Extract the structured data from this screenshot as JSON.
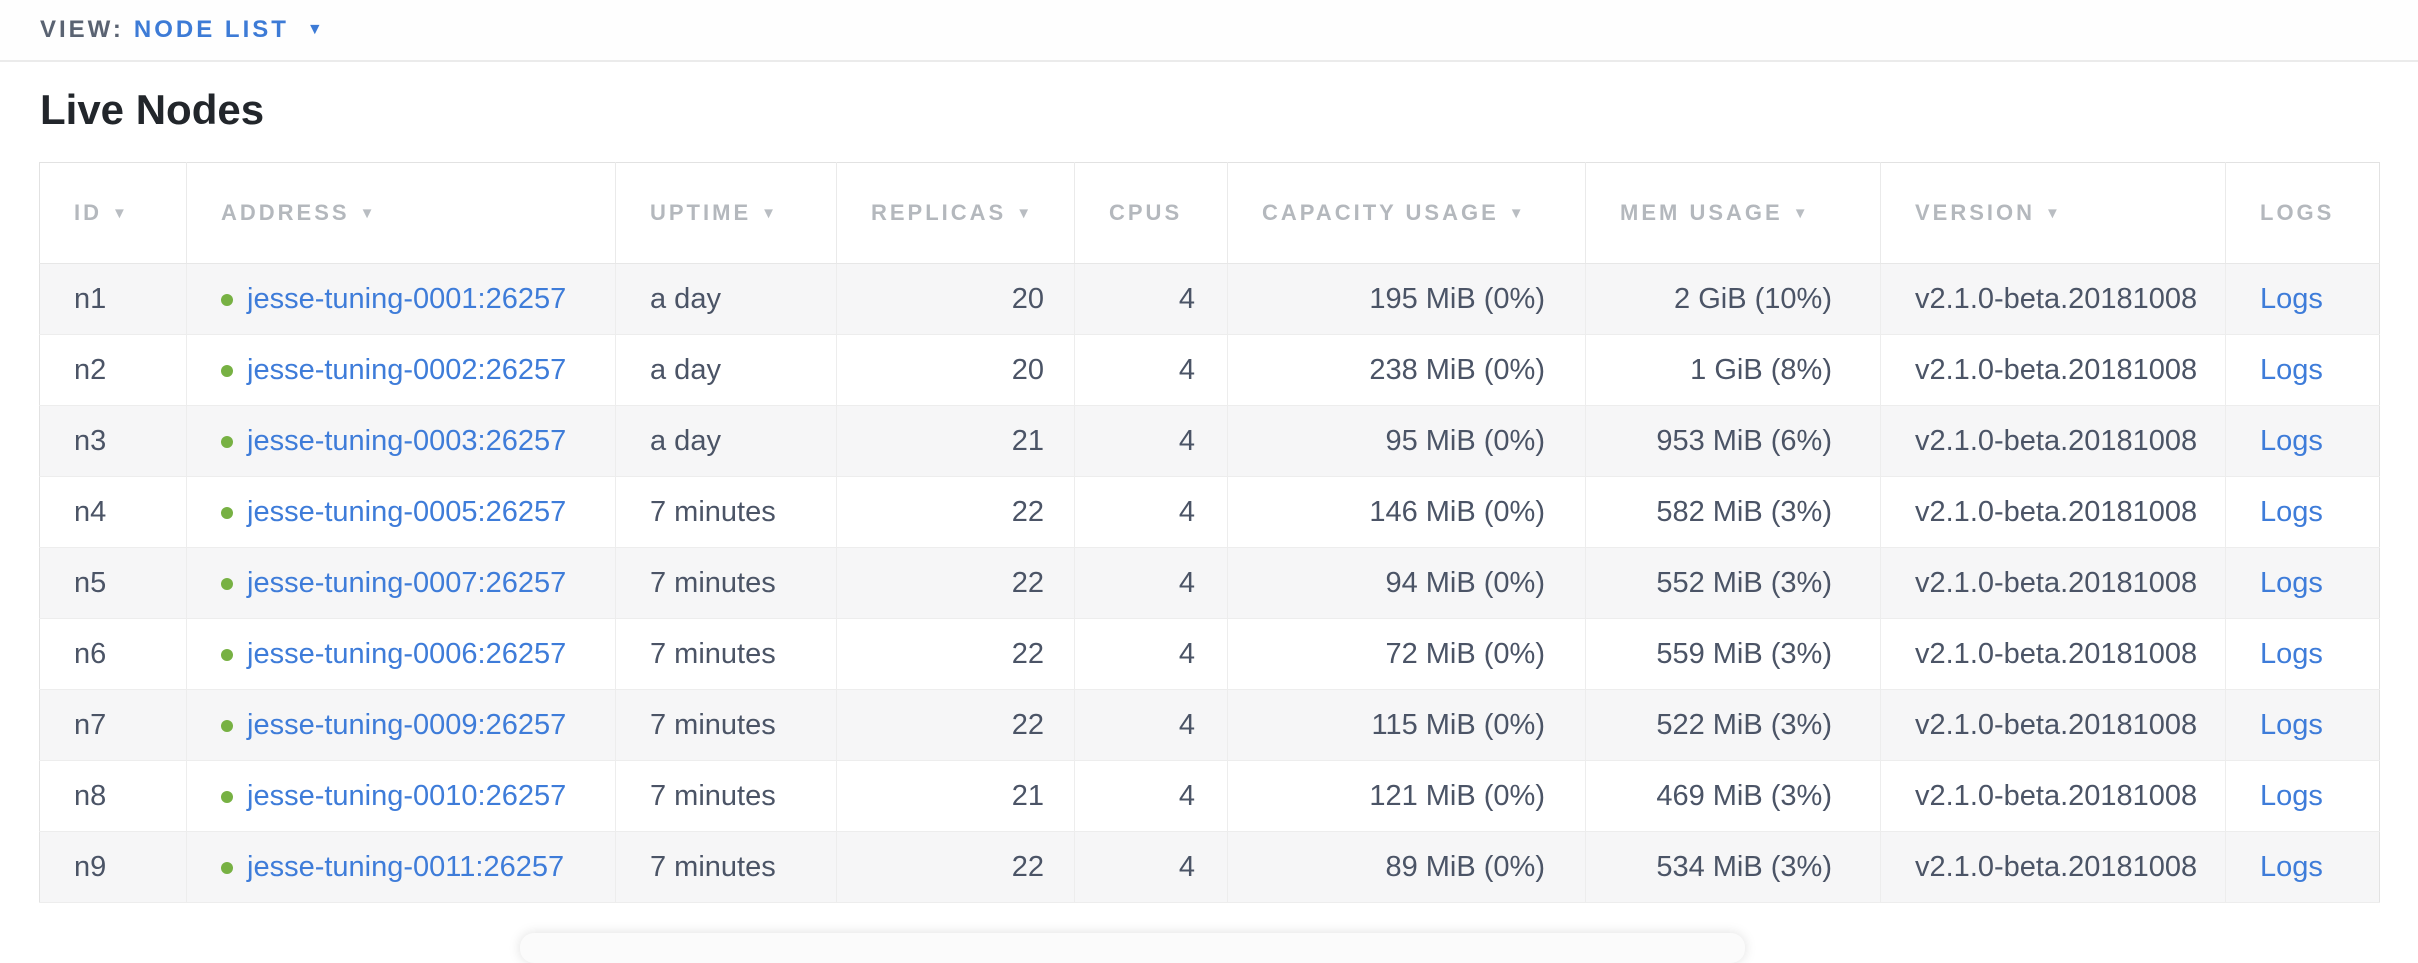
{
  "view_bar": {
    "label": "VIEW:",
    "selected_view": "NODE LIST"
  },
  "page": {
    "title": "Live Nodes"
  },
  "icons": {
    "sort_desc": "▼",
    "dropdown_caret": "▼",
    "live_status_dot": "green-circle"
  },
  "colors": {
    "accent_blue": "#3d7bd6",
    "live_green": "#77b143",
    "header_gray": "#b4b8bd",
    "cell_slate": "#4b5466",
    "zebra_row": "#f6f6f7"
  },
  "table": {
    "columns": [
      {
        "key": "id",
        "label": "ID",
        "sortable": true
      },
      {
        "key": "address",
        "label": "ADDRESS",
        "sortable": true
      },
      {
        "key": "uptime",
        "label": "UPTIME",
        "sortable": true
      },
      {
        "key": "replicas",
        "label": "REPLICAS",
        "sortable": true
      },
      {
        "key": "cpus",
        "label": "CPUS",
        "sortable": false
      },
      {
        "key": "capacity_usage",
        "label": "CAPACITY USAGE",
        "sortable": true
      },
      {
        "key": "mem_usage",
        "label": "MEM USAGE",
        "sortable": true
      },
      {
        "key": "version",
        "label": "VERSION",
        "sortable": true
      },
      {
        "key": "logs",
        "label": "LOGS",
        "sortable": false
      }
    ],
    "logs_link_label": "Logs",
    "rows": [
      {
        "id": "n1",
        "address": "jesse-tuning-0001:26257",
        "status": "live",
        "uptime": "a day",
        "replicas": "20",
        "cpus": "4",
        "capacity_usage": "195 MiB (0%)",
        "mem_usage": "2 GiB (10%)",
        "version": "v2.1.0-beta.20181008"
      },
      {
        "id": "n2",
        "address": "jesse-tuning-0002:26257",
        "status": "live",
        "uptime": "a day",
        "replicas": "20",
        "cpus": "4",
        "capacity_usage": "238 MiB (0%)",
        "mem_usage": "1 GiB (8%)",
        "version": "v2.1.0-beta.20181008"
      },
      {
        "id": "n3",
        "address": "jesse-tuning-0003:26257",
        "status": "live",
        "uptime": "a day",
        "replicas": "21",
        "cpus": "4",
        "capacity_usage": "95 MiB (0%)",
        "mem_usage": "953 MiB (6%)",
        "version": "v2.1.0-beta.20181008"
      },
      {
        "id": "n4",
        "address": "jesse-tuning-0005:26257",
        "status": "live",
        "uptime": "7 minutes",
        "replicas": "22",
        "cpus": "4",
        "capacity_usage": "146 MiB (0%)",
        "mem_usage": "582 MiB (3%)",
        "version": "v2.1.0-beta.20181008"
      },
      {
        "id": "n5",
        "address": "jesse-tuning-0007:26257",
        "status": "live",
        "uptime": "7 minutes",
        "replicas": "22",
        "cpus": "4",
        "capacity_usage": "94 MiB (0%)",
        "mem_usage": "552 MiB (3%)",
        "version": "v2.1.0-beta.20181008"
      },
      {
        "id": "n6",
        "address": "jesse-tuning-0006:26257",
        "status": "live",
        "uptime": "7 minutes",
        "replicas": "22",
        "cpus": "4",
        "capacity_usage": "72 MiB (0%)",
        "mem_usage": "559 MiB (3%)",
        "version": "v2.1.0-beta.20181008"
      },
      {
        "id": "n7",
        "address": "jesse-tuning-0009:26257",
        "status": "live",
        "uptime": "7 minutes",
        "replicas": "22",
        "cpus": "4",
        "capacity_usage": "115 MiB (0%)",
        "mem_usage": "522 MiB (3%)",
        "version": "v2.1.0-beta.20181008"
      },
      {
        "id": "n8",
        "address": "jesse-tuning-0010:26257",
        "status": "live",
        "uptime": "7 minutes",
        "replicas": "21",
        "cpus": "4",
        "capacity_usage": "121 MiB (0%)",
        "mem_usage": "469 MiB (3%)",
        "version": "v2.1.0-beta.20181008"
      },
      {
        "id": "n9",
        "address": "jesse-tuning-0011:26257",
        "status": "live",
        "uptime": "7 minutes",
        "replicas": "22",
        "cpus": "4",
        "capacity_usage": "89 MiB (0%)",
        "mem_usage": "534 MiB (3%)",
        "version": "v2.1.0-beta.20181008"
      }
    ]
  }
}
